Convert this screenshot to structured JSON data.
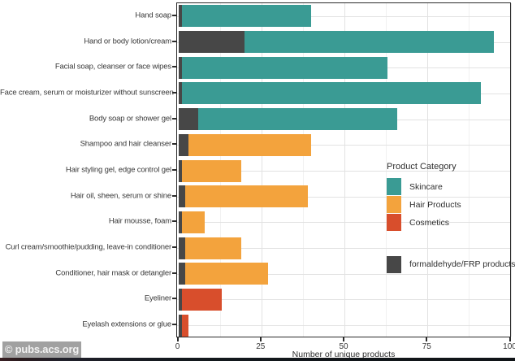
{
  "watermark": {
    "text": "© pubs.acs.org"
  },
  "chart_data": {
    "type": "bar",
    "orientation": "horizontal",
    "title": "",
    "xlabel": "Number of unique products",
    "ylabel": "",
    "xlim": [
      0,
      100
    ],
    "x_ticks": [
      0,
      25,
      50,
      75,
      100
    ],
    "x_minor_gridlines": [
      12.5,
      37.5,
      62.5,
      87.5
    ],
    "grid": true,
    "legend": {
      "position": "inside-right",
      "title": "Product Category",
      "entries": [
        {
          "label": "Skincare",
          "color": "#3a9b94"
        },
        {
          "label": "Hair Products",
          "color": "#f3a33d"
        },
        {
          "label": "Cosmetics",
          "color": "#d84e2c"
        }
      ],
      "extra_entry": {
        "label": "formaldehyde/FRP products",
        "color": "#474747"
      }
    },
    "category_colors": {
      "Skincare": "#3a9b94",
      "Hair Products": "#f3a33d",
      "Cosmetics": "#d84e2c",
      "formaldehyde": "#474747"
    },
    "rows": [
      {
        "label": "Hand soap",
        "category": "Skincare",
        "total": 40,
        "formaldehyde": 1
      },
      {
        "label": "Hand or body lotion/cream",
        "category": "Skincare",
        "total": 95,
        "formaldehyde": 20
      },
      {
        "label": "Facial soap, cleanser or face wipes",
        "category": "Skincare",
        "total": 63,
        "formaldehyde": 1
      },
      {
        "label": "Face cream, serum or moisturizer without sunscreen",
        "category": "Skincare",
        "total": 91,
        "formaldehyde": 1
      },
      {
        "label": "Body soap or shower gel",
        "category": "Skincare",
        "total": 66,
        "formaldehyde": 6
      },
      {
        "label": "Shampoo and hair cleanser",
        "category": "Hair Products",
        "total": 40,
        "formaldehyde": 3
      },
      {
        "label": "Hair styling gel, edge control gel",
        "category": "Hair Products",
        "total": 19,
        "formaldehyde": 1
      },
      {
        "label": "Hair oil, sheen, serum or shine",
        "category": "Hair Products",
        "total": 39,
        "formaldehyde": 2
      },
      {
        "label": "Hair mousse, foam",
        "category": "Hair Products",
        "total": 8,
        "formaldehyde": 1
      },
      {
        "label": "Curl cream/smoothie/pudding, leave-in conditioner",
        "category": "Hair Products",
        "total": 19,
        "formaldehyde": 2
      },
      {
        "label": "Conditioner, hair mask or detangler",
        "category": "Hair Products",
        "total": 27,
        "formaldehyde": 2
      },
      {
        "label": "Eyeliner",
        "category": "Cosmetics",
        "total": 13,
        "formaldehyde": 1
      },
      {
        "label": "Eyelash extensions or glue",
        "category": "Cosmetics",
        "total": 3,
        "formaldehyde": 1
      }
    ]
  }
}
